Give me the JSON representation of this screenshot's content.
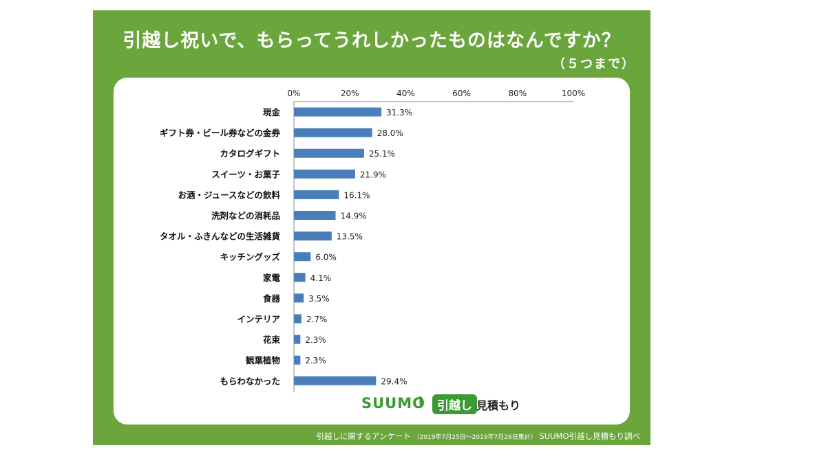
{
  "header": {
    "title": "引越し祝いで、もらってうれしかったものはなんですか？",
    "subtitle": "（５つまで）"
  },
  "footer": {
    "survey": "引越しに関するアンケート",
    "period": "（2019年7月25日～2019年7月26日集計）",
    "source": "SUUMO引越し見積もり調べ"
  },
  "logo": {
    "brand": "SUUMO",
    "badge": "引越し",
    "suffix": "見積もり"
  },
  "colors": {
    "panel": "#6aa63c",
    "bar": "#4a7ebb",
    "logo": "#3a9a34"
  },
  "chart_data": {
    "type": "bar",
    "orientation": "horizontal",
    "xlim": [
      0,
      100
    ],
    "x_ticks": [
      "0%",
      "20%",
      "40%",
      "60%",
      "80%",
      "100%"
    ],
    "x_tick_values": [
      0,
      20,
      40,
      60,
      80,
      100
    ],
    "categories": [
      "現金",
      "ギフト券・ビール券などの金券",
      "カタログギフト",
      "スイーツ・お菓子",
      "お酒・ジュースなどの飲料",
      "洗剤などの消耗品",
      "タオル・ふきんなどの生活雑貨",
      "キッチングッズ",
      "家電",
      "食器",
      "インテリア",
      "花束",
      "観葉植物",
      "もらわなかった"
    ],
    "values": [
      31.3,
      28.0,
      25.1,
      21.9,
      16.1,
      14.9,
      13.5,
      6.0,
      4.1,
      3.5,
      2.7,
      2.3,
      2.3,
      29.4
    ],
    "value_labels": [
      "31.3%",
      "28.0%",
      "25.1%",
      "21.9%",
      "16.1%",
      "14.9%",
      "13.5%",
      "6.0%",
      "4.1%",
      "3.5%",
      "2.7%",
      "2.3%",
      "2.3%",
      "29.4%"
    ],
    "grid": false,
    "legend": false
  }
}
